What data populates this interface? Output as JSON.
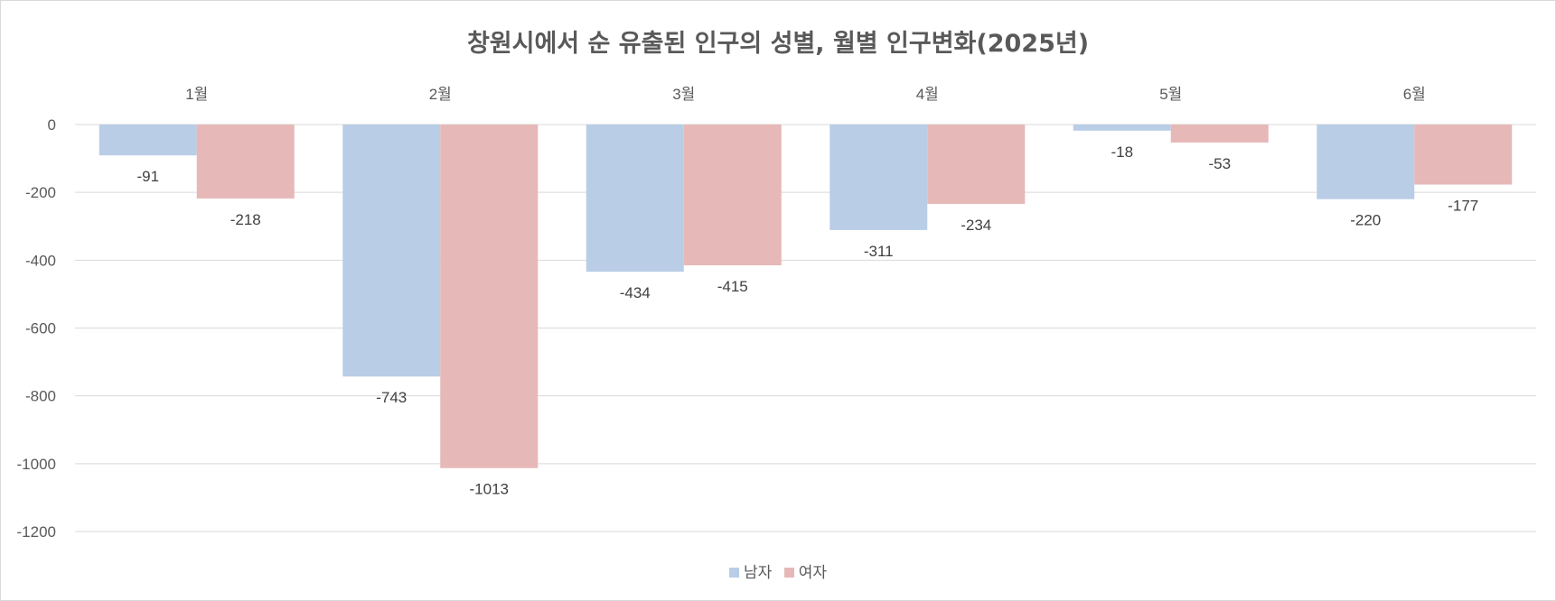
{
  "chart_data": {
    "type": "bar",
    "title": "창원시에서 순 유출된 인구의 성별, 월별 인구변화(2025년)",
    "categories": [
      "1월",
      "2월",
      "3월",
      "4월",
      "5월",
      "6월"
    ],
    "series": [
      {
        "name": "남자",
        "values": [
          -91,
          -743,
          -434,
          -311,
          -18,
          -220
        ],
        "color": "#b9cde6"
      },
      {
        "name": "여자",
        "values": [
          -218,
          -1013,
          -415,
          -234,
          -53,
          -177
        ],
        "color": "#e6b8b7"
      }
    ],
    "ylim": [
      -1200,
      0
    ],
    "yticks": [
      0,
      -200,
      -400,
      -600,
      -800,
      -1000,
      -1200
    ],
    "grid": true,
    "legend_position": "bottom",
    "category_labels_position": "top"
  }
}
